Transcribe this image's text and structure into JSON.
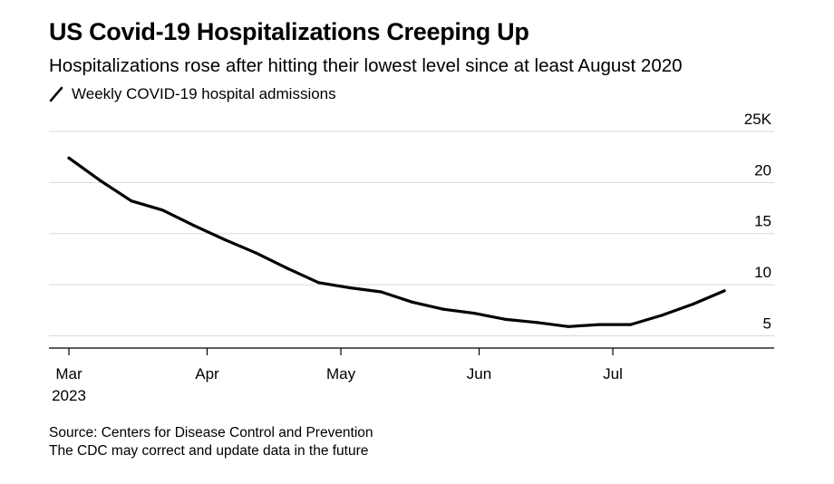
{
  "title": "US Covid-19 Hospitalizations Creeping Up",
  "subtitle": "Hospitalizations rose after hitting their lowest level since at least August 2020",
  "legend": {
    "label": "Weekly COVID-19 hospital admissions"
  },
  "footer": {
    "source": "Source: Centers for Disease Control and Prevention",
    "note": "The CDC may correct and update data in the future"
  },
  "colors": {
    "line": "#000000",
    "grid": "#d9d9d9",
    "axis": "#000000"
  },
  "chart_data": {
    "type": "line",
    "title": "US Covid-19 Hospitalizations Creeping Up",
    "xlabel": "",
    "ylabel": "",
    "ylim": [
      3.8,
      25
    ],
    "y_ticks": [
      {
        "value": 5,
        "label": "5"
      },
      {
        "value": 10,
        "label": "10"
      },
      {
        "value": 15,
        "label": "15"
      },
      {
        "value": 20,
        "label": "20"
      },
      {
        "value": 25,
        "label": "25K"
      }
    ],
    "x_ticks": [
      {
        "date": "2023-03-01",
        "label": "Mar",
        "sublabel": "2023"
      },
      {
        "date": "2023-04-01",
        "label": "Apr",
        "sublabel": ""
      },
      {
        "date": "2023-05-01",
        "label": "May",
        "sublabel": ""
      },
      {
        "date": "2023-06-01",
        "label": "Jun",
        "sublabel": ""
      },
      {
        "date": "2023-07-01",
        "label": "Jul",
        "sublabel": ""
      }
    ],
    "grid": true,
    "legend_position": "top-left",
    "series": [
      {
        "name": "Weekly COVID-19 hospital admissions",
        "points": [
          {
            "x": "2023-03-01",
            "y": 22.4
          },
          {
            "x": "2023-03-08",
            "y": 20.2
          },
          {
            "x": "2023-03-15",
            "y": 18.2
          },
          {
            "x": "2023-03-22",
            "y": 17.3
          },
          {
            "x": "2023-03-29",
            "y": 15.8
          },
          {
            "x": "2023-04-05",
            "y": 14.4
          },
          {
            "x": "2023-04-12",
            "y": 13.1
          },
          {
            "x": "2023-04-19",
            "y": 11.6
          },
          {
            "x": "2023-04-26",
            "y": 10.2
          },
          {
            "x": "2023-05-03",
            "y": 9.7
          },
          {
            "x": "2023-05-10",
            "y": 9.3
          },
          {
            "x": "2023-05-17",
            "y": 8.3
          },
          {
            "x": "2023-05-24",
            "y": 7.6
          },
          {
            "x": "2023-05-31",
            "y": 7.2
          },
          {
            "x": "2023-06-07",
            "y": 6.6
          },
          {
            "x": "2023-06-14",
            "y": 6.3
          },
          {
            "x": "2023-06-21",
            "y": 5.9
          },
          {
            "x": "2023-06-28",
            "y": 6.1
          },
          {
            "x": "2023-07-05",
            "y": 6.1
          },
          {
            "x": "2023-07-12",
            "y": 7.0
          },
          {
            "x": "2023-07-19",
            "y": 8.1
          },
          {
            "x": "2023-07-26",
            "y": 9.4
          }
        ]
      }
    ]
  }
}
